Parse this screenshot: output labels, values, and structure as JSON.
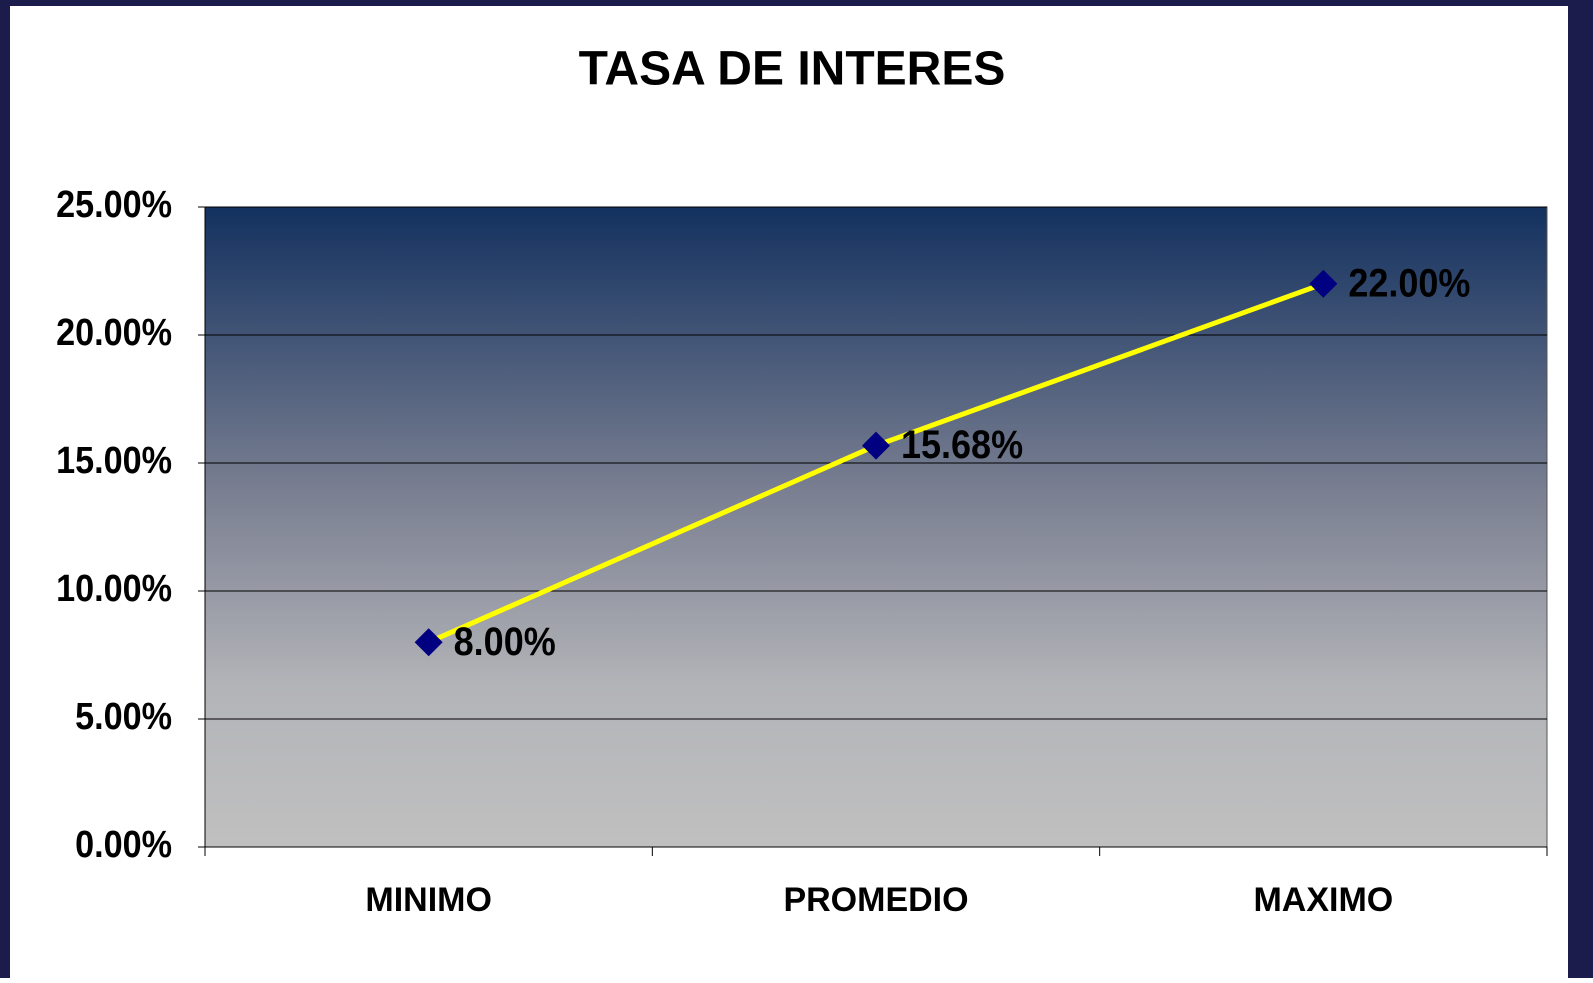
{
  "chart_data": {
    "type": "line",
    "title": "TASA DE INTERES",
    "categories": [
      "MINIMO",
      "PROMEDIO",
      "MAXIMO"
    ],
    "series": [
      {
        "name": "TASA DE INTERES",
        "color": "#ffff00",
        "marker_color": "#000080",
        "values": [
          8,
          15.68,
          22
        ],
        "value_labels": [
          "8.00%",
          "15.68%",
          "22.00%"
        ]
      }
    ],
    "ylim": [
      0,
      25
    ],
    "yticks": [
      {
        "value": 0,
        "label": "0.00%"
      },
      {
        "value": 5,
        "label": "5.00%"
      },
      {
        "value": 10,
        "label": "10.00%"
      },
      {
        "value": 15,
        "label": "15.00%"
      },
      {
        "value": 20,
        "label": "20.00%"
      },
      {
        "value": 25,
        "label": "25.00%"
      }
    ],
    "grid": true
  }
}
